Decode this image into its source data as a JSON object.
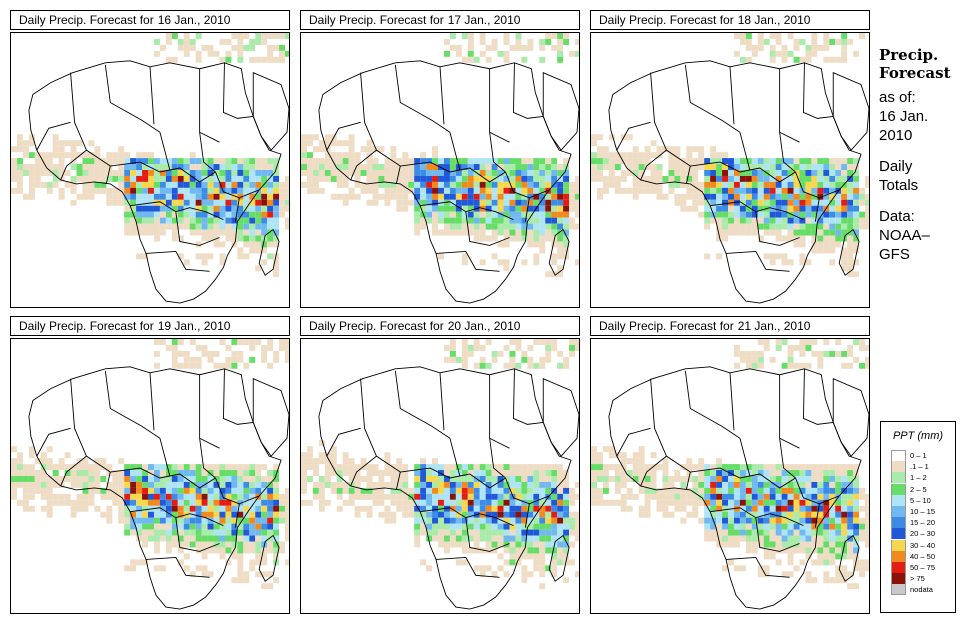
{
  "panels": [
    {
      "title_prefix": "Daily Precip. Forecast for",
      "date": "16 Jan., 2010"
    },
    {
      "title_prefix": "Daily Precip. Forecast for",
      "date": "17 Jan., 2010"
    },
    {
      "title_prefix": "Daily Precip. Forecast for",
      "date": "18 Jan., 2010"
    },
    {
      "title_prefix": "Daily Precip. Forecast for",
      "date": "19 Jan., 2010"
    },
    {
      "title_prefix": "Daily Precip. Forecast for",
      "date": "20 Jan., 2010"
    },
    {
      "title_prefix": "Daily Precip. Forecast for",
      "date": "21 Jan., 2010"
    }
  ],
  "side": {
    "title_line1": "Precip.",
    "title_line2": "Forecast",
    "asof_line1": "as of:",
    "asof_line2": "16 Jan.",
    "asof_line3": "2010",
    "daily_line1": "Daily",
    "daily_line2": "Totals",
    "data_line1": "Data:",
    "data_line2": "NOAA–",
    "data_line3": "GFS"
  },
  "legend": {
    "title": "PPT (mm)",
    "items": [
      {
        "label": "0 – 1",
        "color": "#ffffff"
      },
      {
        "label": ".1 – 1",
        "color": "#eedcc4"
      },
      {
        "label": "1 – 2",
        "color": "#aaeaaa"
      },
      {
        "label": "2 – 5",
        "color": "#66dd66"
      },
      {
        "label": "5 – 10",
        "color": "#aee4f4"
      },
      {
        "label": "10 – 15",
        "color": "#6fb8f0"
      },
      {
        "label": "15 – 20",
        "color": "#3c8ce6"
      },
      {
        "label": "20 – 30",
        "color": "#1f58d8"
      },
      {
        "label": "30 – 40",
        "color": "#f6d84e"
      },
      {
        "label": "40 – 50",
        "color": "#f08a1e"
      },
      {
        "label": "50 – 75",
        "color": "#e41d14"
      },
      {
        "label": "> 75",
        "color": "#8a1208"
      },
      {
        "label": "nodata",
        "color": "#c8c8c8"
      }
    ]
  }
}
